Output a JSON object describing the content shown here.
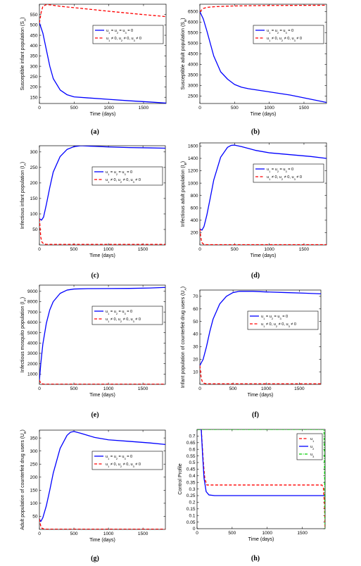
{
  "chart_data": [
    {
      "id": "a",
      "caption": "(a)",
      "type": "line",
      "xlabel": "Time (days)",
      "ylabel": "Susceptible infant population (S_A)",
      "xlim": [
        0,
        1825
      ],
      "ylim": [
        120,
        600
      ],
      "xticks": [
        0,
        500,
        1000,
        1500
      ],
      "yticks": [
        150,
        200,
        250,
        300,
        350,
        400,
        450,
        500,
        550
      ],
      "legend": {
        "position": "top-right"
      },
      "series": [
        {
          "name": "u_1 = u_2 = u_3 = 0",
          "color": "#0000ff",
          "dash": "solid",
          "x": [
            0,
            50,
            100,
            150,
            200,
            300,
            400,
            500,
            700,
            1000,
            1300,
            1600,
            1825
          ],
          "y": [
            510,
            460,
            380,
            300,
            240,
            185,
            162,
            152,
            147,
            140,
            133,
            127,
            122
          ]
        },
        {
          "name": "u_1 ≠ 0, u_2 ≠ 0, u_3 ≠ 0",
          "color": "#ff0000",
          "dash": "dashed",
          "x": [
            0,
            25,
            50,
            100,
            150,
            300,
            600,
            1000,
            1400,
            1825
          ],
          "y": [
            510,
            560,
            590,
            598,
            597,
            590,
            580,
            566,
            553,
            540
          ]
        }
      ]
    },
    {
      "id": "b",
      "caption": "(b)",
      "type": "line",
      "xlabel": "Time (days)",
      "ylabel": "Susceptible adult population (S_B)",
      "xlim": [
        0,
        1825
      ],
      "ylim": [
        2150,
        6850
      ],
      "xticks": [
        0,
        500,
        1000,
        1500
      ],
      "yticks": [
        2500,
        3000,
        3500,
        4000,
        4500,
        5000,
        5500,
        6000,
        6500
      ],
      "legend": {
        "position": "top-right"
      },
      "series": [
        {
          "name": "u_1 = u_2 = u_3 = 0",
          "color": "#0000ff",
          "dash": "solid",
          "x": [
            0,
            50,
            100,
            150,
            200,
            300,
            400,
            500,
            600,
            700,
            1000,
            1300,
            1600,
            1825
          ],
          "y": [
            6500,
            6150,
            5600,
            5000,
            4400,
            3650,
            3300,
            3050,
            2920,
            2850,
            2700,
            2550,
            2350,
            2200
          ]
        },
        {
          "name": "u_1 ≠ 0, u_2 ≠ 0, u_3 ≠ 0",
          "color": "#ff0000",
          "dash": "dashed",
          "x": [
            0,
            50,
            100,
            200,
            400,
            700,
            1000,
            1400,
            1825
          ],
          "y": [
            6500,
            6650,
            6700,
            6730,
            6760,
            6780,
            6790,
            6795,
            6800
          ]
        }
      ]
    },
    {
      "id": "c",
      "caption": "(c)",
      "type": "line",
      "xlabel": "Time (days)",
      "ylabel": "Infectious infant population (I_A)",
      "xlim": [
        0,
        1825
      ],
      "ylim": [
        0,
        320
      ],
      "xticks": [
        0,
        500,
        1000,
        1500
      ],
      "yticks": [
        50,
        100,
        150,
        200,
        250,
        300
      ],
      "legend": {
        "position": "top-right"
      },
      "series": [
        {
          "name": "u_1 = u_2 = u_3 = 0",
          "color": "#0000ff",
          "dash": "solid",
          "x": [
            0,
            30,
            60,
            100,
            150,
            200,
            300,
            400,
            500,
            600,
            800,
            1000,
            1300,
            1600,
            1825
          ],
          "y": [
            85,
            80,
            90,
            130,
            185,
            235,
            285,
            308,
            317,
            320,
            318,
            316,
            314,
            313,
            312
          ]
        },
        {
          "name": "u_1 ≠ 0, u_2 ≠ 0, u_3 ≠ 0",
          "color": "#ff0000",
          "dash": "dashed",
          "x": [
            0,
            10,
            20,
            35,
            60,
            100,
            300,
            1825
          ],
          "y": [
            85,
            55,
            25,
            10,
            4,
            2,
            2,
            2
          ]
        }
      ]
    },
    {
      "id": "d",
      "caption": "(d)",
      "type": "line",
      "xlabel": "Time (days)",
      "ylabel": "Infectious adult population (I_B)",
      "xlim": [
        0,
        1825
      ],
      "ylim": [
        0,
        1650
      ],
      "xticks": [
        0,
        500,
        1000,
        1500
      ],
      "yticks": [
        200,
        400,
        600,
        800,
        1000,
        1200,
        1400,
        1600
      ],
      "legend": {
        "position": "top-right"
      },
      "series": [
        {
          "name": "u_1 = u_2 = u_3 = 0",
          "color": "#0000ff",
          "dash": "solid",
          "x": [
            0,
            30,
            60,
            100,
            150,
            200,
            300,
            400,
            450,
            500,
            600,
            800,
            1000,
            1300,
            1600,
            1825
          ],
          "y": [
            260,
            240,
            300,
            480,
            760,
            1050,
            1420,
            1580,
            1610,
            1615,
            1590,
            1530,
            1490,
            1460,
            1430,
            1400
          ]
        },
        {
          "name": "u_1 ≠ 0, u_2 ≠ 0, u_3 ≠ 0",
          "color": "#ff0000",
          "dash": "dashed",
          "x": [
            0,
            10,
            20,
            35,
            60,
            100,
            300,
            1825
          ],
          "y": [
            260,
            160,
            80,
            30,
            10,
            5,
            5,
            5
          ]
        }
      ]
    },
    {
      "id": "e",
      "caption": "(e)",
      "type": "line",
      "xlabel": "Time (days)",
      "ylabel": "Infectious mosquito population (I_m)",
      "xlim": [
        0,
        1825
      ],
      "ylim": [
        0,
        9600
      ],
      "xticks": [
        0,
        500,
        1000,
        1500
      ],
      "yticks": [
        1000,
        2000,
        3000,
        4000,
        5000,
        6000,
        7000,
        8000,
        9000
      ],
      "legend": {
        "position": "top-right"
      },
      "series": [
        {
          "name": "u_1 = u_2 = u_3 = 0",
          "color": "#0000ff",
          "dash": "solid",
          "x": [
            0,
            20,
            50,
            100,
            150,
            200,
            300,
            400,
            500,
            700,
            1000,
            1300,
            1600,
            1825
          ],
          "y": [
            400,
            2000,
            3900,
            5900,
            7200,
            8000,
            8800,
            9120,
            9220,
            9260,
            9270,
            9280,
            9320,
            9380
          ]
        },
        {
          "name": "u_1 ≠ 0, u_2 ≠ 0, u_3 ≠ 0",
          "color": "#ff0000",
          "dash": "dashed",
          "x": [
            0,
            10,
            20,
            35,
            60,
            100,
            300,
            1825
          ],
          "y": [
            400,
            250,
            120,
            60,
            30,
            20,
            20,
            20
          ]
        }
      ]
    },
    {
      "id": "f",
      "caption": "(f)",
      "type": "line",
      "xlabel": "Time (days)",
      "ylabel": "Infant population of counterfeit drug users (U_A)",
      "xlim": [
        0,
        1825
      ],
      "ylim": [
        0,
        75
      ],
      "xticks": [
        0,
        500,
        1000,
        1500
      ],
      "yticks": [
        10,
        20,
        30,
        40,
        50,
        60,
        70
      ],
      "legend": {
        "position": "top-right"
      },
      "series": [
        {
          "name": "u_1 = u_2 = u_3 = 0",
          "color": "#0000ff",
          "dash": "solid",
          "x": [
            0,
            20,
            50,
            100,
            150,
            200,
            300,
            400,
            500,
            600,
            800,
            1000,
            1300,
            1600,
            1825
          ],
          "y": [
            15,
            17,
            20,
            30,
            42,
            52,
            64,
            70,
            73,
            74,
            74,
            73.5,
            73,
            72.5,
            72
          ]
        },
        {
          "name": "u_1 ≠ 0, u_2 ≠ 0, u_3 ≠ 0",
          "color": "#ff0000",
          "dash": "dashed",
          "x": [
            0,
            10,
            20,
            35,
            60,
            100,
            300,
            1825
          ],
          "y": [
            15,
            10,
            5,
            2.5,
            1,
            0.5,
            0.5,
            0.5
          ]
        }
      ]
    },
    {
      "id": "g",
      "caption": "(g)",
      "type": "line",
      "xlabel": "Time (days)",
      "ylabel": "Adult population of counterfeit drug users (U_B)",
      "xlim": [
        0,
        1825
      ],
      "ylim": [
        0,
        380
      ],
      "xticks": [
        0,
        500,
        1000,
        1500
      ],
      "yticks": [
        50,
        100,
        150,
        200,
        250,
        300,
        350
      ],
      "legend": {
        "position": "top-right"
      },
      "series": [
        {
          "name": "u_1 = u_2 = u_3 = 0",
          "color": "#0000ff",
          "dash": "solid",
          "x": [
            0,
            20,
            50,
            100,
            150,
            200,
            300,
            400,
            450,
            500,
            600,
            800,
            1000,
            1300,
            1600,
            1825
          ],
          "y": [
            40,
            30,
            45,
            90,
            150,
            215,
            310,
            360,
            372,
            375,
            368,
            352,
            343,
            337,
            331,
            325
          ]
        },
        {
          "name": "u_1 ≠ 0, u_2 ≠ 0, u_3 ≠ 0",
          "color": "#ff0000",
          "dash": "dashed",
          "x": [
            0,
            10,
            20,
            35,
            60,
            100,
            300,
            1825
          ],
          "y": [
            40,
            25,
            12,
            5,
            2,
            1,
            1,
            1
          ]
        }
      ]
    },
    {
      "id": "h",
      "caption": "(h)",
      "type": "line",
      "xlabel": "Time (days)",
      "ylabel": "Control Profile",
      "xlim": [
        0,
        1825
      ],
      "ylim": [
        0,
        0.75
      ],
      "xticks": [
        0,
        500,
        1000,
        1500
      ],
      "yticks": [
        0,
        0.05,
        0.1,
        0.15,
        0.2,
        0.25,
        0.3,
        0.35,
        0.4,
        0.45,
        0.5,
        0.55,
        0.6,
        0.65,
        0.7
      ],
      "legend": {
        "position": "top-right"
      },
      "series": [
        {
          "name": "u_1",
          "color": "#ff0000",
          "dash": "dashed",
          "x": [
            0,
            60,
            90,
            110,
            140,
            400,
            1000,
            1600,
            1780,
            1800,
            1815,
            1825
          ],
          "y": [
            0.75,
            0.75,
            0.5,
            0.38,
            0.33,
            0.33,
            0.33,
            0.33,
            0.33,
            0.31,
            0.2,
            0
          ]
        },
        {
          "name": "u_2",
          "color": "#0000ff",
          "dash": "solid",
          "x": [
            0,
            60,
            80,
            100,
            130,
            170,
            250,
            500,
            1000,
            1500,
            1810,
            1825
          ],
          "y": [
            0.75,
            0.75,
            0.55,
            0.38,
            0.28,
            0.255,
            0.25,
            0.25,
            0.25,
            0.25,
            0.25,
            0.25
          ]
        },
        {
          "name": "u_3",
          "color": "#00cc00",
          "dash": "dashdot",
          "x": [
            0,
            1810,
            1818,
            1825
          ],
          "y": [
            0.75,
            0.75,
            0.4,
            0
          ]
        }
      ]
    }
  ]
}
